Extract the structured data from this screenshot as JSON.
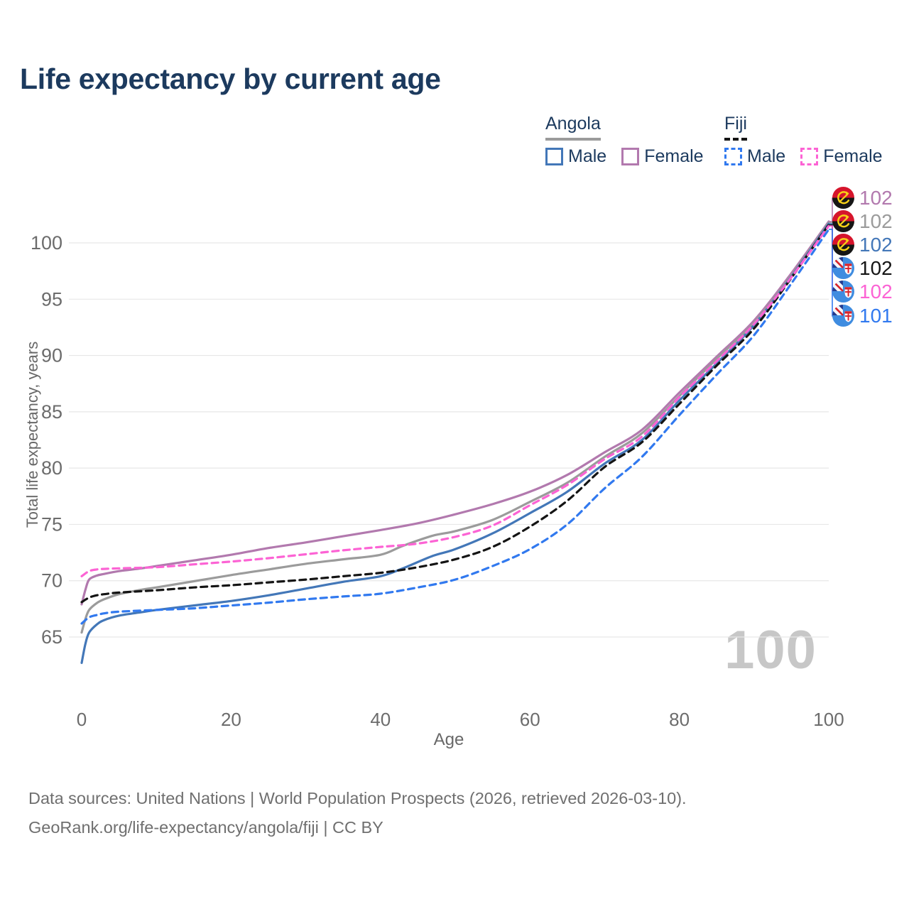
{
  "title": "Life expectancy by current age",
  "watermark": "100",
  "y_axis": {
    "title": "Total life expectancy, years"
  },
  "x_axis": {
    "title": "Age"
  },
  "legend": {
    "groups": [
      {
        "country": "Angola",
        "underline_color": "#9b9b9b",
        "underline_style": "solid",
        "items": [
          {
            "label": "Male",
            "color": "#4377b8",
            "dash": false
          },
          {
            "label": "Female",
            "color": "#b279ae",
            "dash": false
          }
        ]
      },
      {
        "country": "Fiji",
        "underline_color": "#141414",
        "underline_style": "dashed",
        "items": [
          {
            "label": "Male",
            "color": "#3179ef",
            "dash": true
          },
          {
            "label": "Female",
            "color": "#fc63d4",
            "dash": true
          }
        ]
      }
    ]
  },
  "footer": {
    "line1": "Data sources: United Nations | World Population Prospects (2026, retrieved 2026-03-10).",
    "line2": "GeoRank.org/life-expectancy/angola/fiji | CC BY"
  },
  "chart_data": {
    "type": "line",
    "title": "Life expectancy by current age",
    "xlabel": "Age",
    "ylabel": "Total life expectancy, years",
    "xlim": [
      0,
      100
    ],
    "ylim": [
      62,
      103
    ],
    "xticks": [
      0,
      20,
      40,
      60,
      80,
      100
    ],
    "yticks": [
      65,
      70,
      75,
      80,
      85,
      90,
      95,
      100
    ],
    "grid": "horizontal",
    "gridline_color": "#e7e7e7",
    "legend_position": "top-right",
    "series": [
      {
        "id": "angola-female",
        "name": "Angola Female",
        "country": "Angola",
        "sex": "Female",
        "flag": "angola",
        "color": "#b279ae",
        "dash": false,
        "end_label": "102",
        "points": [
          [
            0,
            67.9
          ],
          [
            0.5,
            69.2
          ],
          [
            1,
            70.1
          ],
          [
            2,
            70.45
          ],
          [
            3,
            70.6
          ],
          [
            5,
            70.85
          ],
          [
            8,
            71.1
          ],
          [
            10,
            71.3
          ],
          [
            15,
            71.8
          ],
          [
            20,
            72.3
          ],
          [
            25,
            72.9
          ],
          [
            30,
            73.4
          ],
          [
            35,
            73.95
          ],
          [
            40,
            74.5
          ],
          [
            45,
            75.1
          ],
          [
            50,
            75.9
          ],
          [
            55,
            76.8
          ],
          [
            60,
            77.9
          ],
          [
            65,
            79.4
          ],
          [
            70,
            81.4
          ],
          [
            75,
            83.4
          ],
          [
            80,
            86.7
          ],
          [
            85,
            89.9
          ],
          [
            90,
            93.1
          ],
          [
            95,
            97.3
          ],
          [
            100,
            101.9
          ]
        ]
      },
      {
        "id": "angola-both",
        "name": "Angola",
        "country": "Angola",
        "sex": "Both",
        "flag": "angola",
        "color": "#9b9b9b",
        "dash": false,
        "end_label": "102",
        "points": [
          [
            0,
            65.4
          ],
          [
            0.5,
            66.6
          ],
          [
            1,
            67.4
          ],
          [
            2,
            68.0
          ],
          [
            3,
            68.35
          ],
          [
            5,
            68.8
          ],
          [
            8,
            69.2
          ],
          [
            10,
            69.4
          ],
          [
            15,
            69.95
          ],
          [
            20,
            70.5
          ],
          [
            25,
            71.0
          ],
          [
            30,
            71.5
          ],
          [
            35,
            71.9
          ],
          [
            40,
            72.3
          ],
          [
            43,
            73.1
          ],
          [
            47,
            74.0
          ],
          [
            50,
            74.4
          ],
          [
            55,
            75.4
          ],
          [
            60,
            77.0
          ],
          [
            65,
            78.7
          ],
          [
            70,
            81.0
          ],
          [
            75,
            83.1
          ],
          [
            80,
            86.4
          ],
          [
            85,
            89.7
          ],
          [
            90,
            92.9
          ],
          [
            95,
            97.1
          ],
          [
            100,
            101.8
          ]
        ]
      },
      {
        "id": "angola-male",
        "name": "Angola Male",
        "country": "Angola",
        "sex": "Male",
        "flag": "angola",
        "color": "#4377b8",
        "dash": false,
        "end_label": "102",
        "points": [
          [
            0,
            62.7
          ],
          [
            0.5,
            64.4
          ],
          [
            1,
            65.4
          ],
          [
            2,
            66.1
          ],
          [
            3,
            66.5
          ],
          [
            5,
            66.9
          ],
          [
            8,
            67.2
          ],
          [
            10,
            67.4
          ],
          [
            15,
            67.8
          ],
          [
            20,
            68.2
          ],
          [
            25,
            68.7
          ],
          [
            30,
            69.3
          ],
          [
            35,
            69.9
          ],
          [
            40,
            70.4
          ],
          [
            43,
            71.1
          ],
          [
            47,
            72.2
          ],
          [
            50,
            72.8
          ],
          [
            55,
            74.2
          ],
          [
            60,
            76.0
          ],
          [
            65,
            77.9
          ],
          [
            70,
            80.4
          ],
          [
            75,
            82.5
          ],
          [
            80,
            86.0
          ],
          [
            85,
            89.3
          ],
          [
            90,
            92.7
          ],
          [
            95,
            97.0
          ],
          [
            100,
            101.7
          ]
        ]
      },
      {
        "id": "fiji-both",
        "name": "Fiji",
        "country": "Fiji",
        "sex": "Both",
        "flag": "fiji",
        "color": "#141414",
        "dash": true,
        "end_label": "102",
        "points": [
          [
            0,
            68.1
          ],
          [
            1,
            68.5
          ],
          [
            2,
            68.7
          ],
          [
            3,
            68.8
          ],
          [
            5,
            68.95
          ],
          [
            10,
            69.15
          ],
          [
            15,
            69.4
          ],
          [
            20,
            69.6
          ],
          [
            25,
            69.85
          ],
          [
            30,
            70.1
          ],
          [
            35,
            70.4
          ],
          [
            40,
            70.7
          ],
          [
            45,
            71.2
          ],
          [
            50,
            71.9
          ],
          [
            55,
            73.0
          ],
          [
            60,
            74.8
          ],
          [
            65,
            77.1
          ],
          [
            70,
            80.1
          ],
          [
            75,
            82.3
          ],
          [
            80,
            85.7
          ],
          [
            85,
            89.1
          ],
          [
            90,
            92.4
          ],
          [
            95,
            96.9
          ],
          [
            100,
            101.6
          ]
        ]
      },
      {
        "id": "fiji-female",
        "name": "Fiji Female",
        "country": "Fiji",
        "sex": "Female",
        "flag": "fiji",
        "color": "#fc63d4",
        "dash": true,
        "end_label": "102",
        "points": [
          [
            0,
            70.4
          ],
          [
            1,
            70.85
          ],
          [
            2,
            71.0
          ],
          [
            3,
            71.05
          ],
          [
            5,
            71.1
          ],
          [
            10,
            71.2
          ],
          [
            15,
            71.45
          ],
          [
            20,
            71.7
          ],
          [
            25,
            72.0
          ],
          [
            30,
            72.35
          ],
          [
            35,
            72.7
          ],
          [
            40,
            73.0
          ],
          [
            45,
            73.3
          ],
          [
            50,
            73.9
          ],
          [
            55,
            74.9
          ],
          [
            60,
            76.7
          ],
          [
            65,
            78.5
          ],
          [
            70,
            80.8
          ],
          [
            75,
            82.8
          ],
          [
            80,
            86.3
          ],
          [
            85,
            89.5
          ],
          [
            90,
            92.8
          ],
          [
            95,
            96.95
          ],
          [
            100,
            101.5
          ]
        ]
      },
      {
        "id": "fiji-male",
        "name": "Fiji Male",
        "country": "Fiji",
        "sex": "Male",
        "flag": "fiji",
        "color": "#3179ef",
        "dash": true,
        "end_label": "101",
        "points": [
          [
            0,
            66.2
          ],
          [
            1,
            66.75
          ],
          [
            2,
            66.95
          ],
          [
            3,
            67.1
          ],
          [
            5,
            67.25
          ],
          [
            10,
            67.4
          ],
          [
            15,
            67.55
          ],
          [
            20,
            67.8
          ],
          [
            25,
            68.05
          ],
          [
            30,
            68.35
          ],
          [
            35,
            68.6
          ],
          [
            40,
            68.85
          ],
          [
            45,
            69.4
          ],
          [
            50,
            70.1
          ],
          [
            55,
            71.3
          ],
          [
            60,
            72.8
          ],
          [
            65,
            75.0
          ],
          [
            70,
            78.2
          ],
          [
            75,
            81.0
          ],
          [
            80,
            84.7
          ],
          [
            85,
            88.3
          ],
          [
            90,
            91.8
          ],
          [
            95,
            96.4
          ],
          [
            100,
            101.2
          ]
        ]
      }
    ]
  }
}
